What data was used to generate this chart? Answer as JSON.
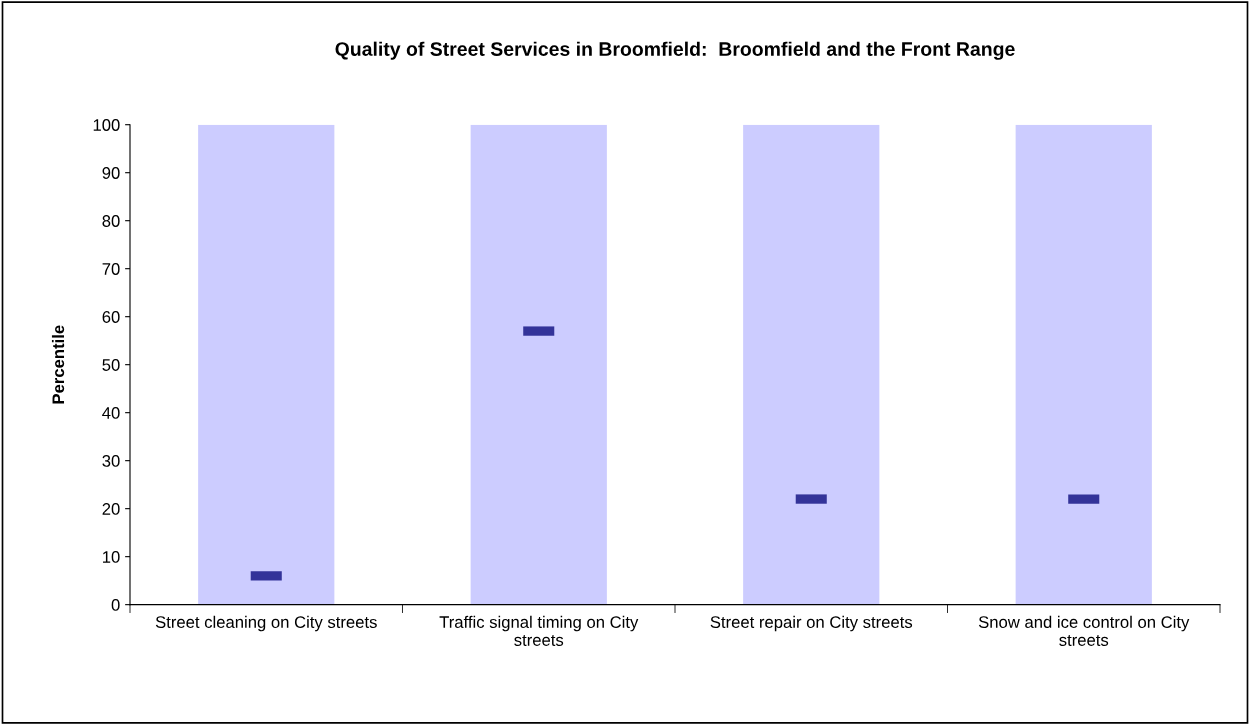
{
  "chart_data": {
    "type": "bar",
    "title": "Quality of Street Services in Broomfield:  Broomfield and the Front Range",
    "ylabel": "Percentile",
    "categories": [
      "Street cleaning on City streets",
      "Traffic signal timing on City streets",
      "Street repair on City streets",
      "Snow and ice control on City streets"
    ],
    "series": [
      {
        "color": "#ccccff",
        "values": [
          100,
          100,
          100,
          100
        ]
      },
      {
        "type": "scatter",
        "color": "#333399",
        "values": [
          6,
          57,
          22,
          22
        ]
      }
    ],
    "ylim": [
      0,
      100
    ],
    "yticks": [
      0,
      10,
      20,
      30,
      40,
      50,
      60,
      70,
      80,
      90,
      100
    ],
    "grid": false,
    "legend": false
  }
}
